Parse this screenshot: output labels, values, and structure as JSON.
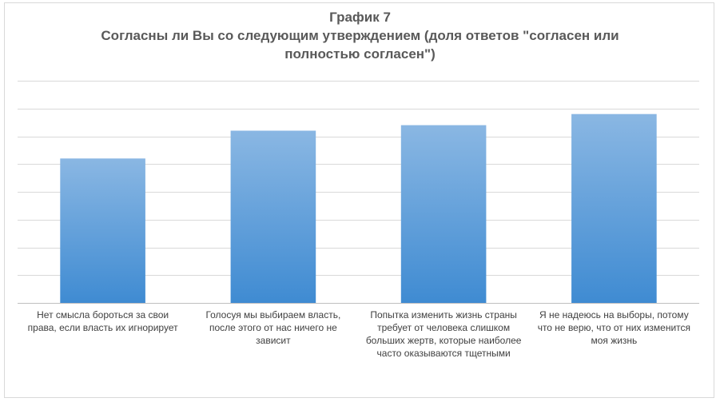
{
  "chart_data": {
    "type": "bar",
    "title": "График 7",
    "subtitle": "Согласны ли Вы со следующим утверждением (доля ответов \"согласен или полностью согласен\")",
    "subtitle_lines": [
      "Согласны ли Вы со следующим утверждением (доля ответов \"согласен или",
      "полностью согласен\")"
    ],
    "categories": [
      "Нет смысла бороться за свои права, если власть их игнорирует",
      "Голосуя мы выбираем власть, после этого от нас ничего не зависит",
      "Попытка изменить жизнь страны требует от человека слишком больших жертв, которые наиболее часто оказываются тщетными",
      "Я не надеюсь на выборы, потому что не верю, что от них изменится моя жизнь"
    ],
    "values": [
      52,
      62,
      64,
      68
    ],
    "ylim": [
      0,
      80
    ],
    "gridlines": 8,
    "xlabel": "",
    "ylabel": "",
    "grid": true,
    "legend": "none",
    "colors": {
      "bar_top": "#8ab7e3",
      "bar_bottom": "#3f8bd2",
      "grid": "#d9d9d9",
      "axis": "#bfbfbf",
      "title": "#595959",
      "label": "#404040"
    }
  }
}
